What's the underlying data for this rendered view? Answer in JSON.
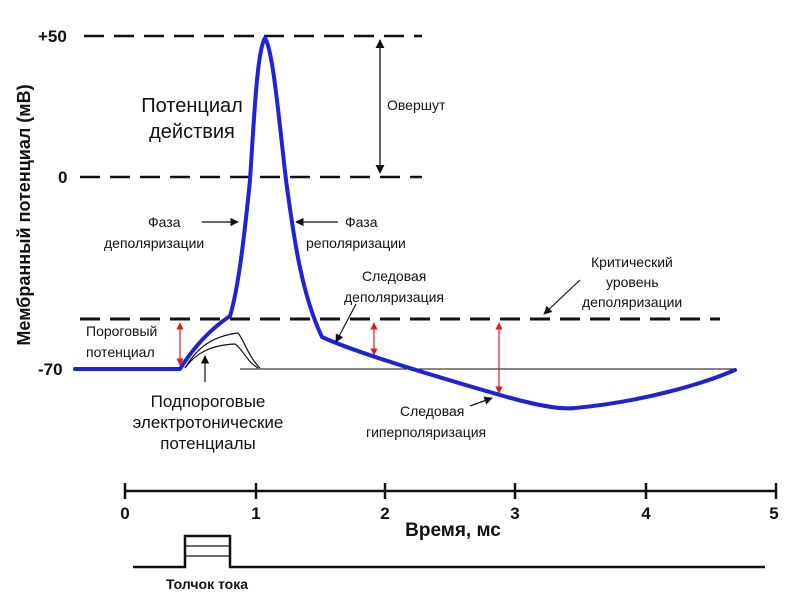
{
  "axis": {
    "y_label": "Мембранный потенциал (мВ)",
    "y_ticks": [
      "+50",
      "0",
      "-70"
    ],
    "x_label": "Время, мс",
    "x_ticks": [
      "0",
      "1",
      "2",
      "3",
      "4",
      "5"
    ]
  },
  "labels": {
    "action_potential": [
      "Потенциал",
      "действия"
    ],
    "overshoot": "Овершут",
    "depol_phase": [
      "Фаза",
      "деполяризации"
    ],
    "repol_phase": [
      "Фаза",
      "реполяризации"
    ],
    "trace_depol": [
      "Следовая",
      "деполяризация"
    ],
    "critical_level": [
      "Критический",
      "уровень",
      "деполяризации"
    ],
    "threshold": [
      "Пороговый",
      "потенциал"
    ],
    "subthreshold": [
      "Подпороговые",
      "электротонические",
      "потенциалы"
    ],
    "trace_hyperpol": [
      "Следовая",
      "гиперполяризация"
    ],
    "stimulus": "Толчок тока"
  },
  "colors": {
    "action_potential_curve": "#2121d6",
    "marker": "#d62020",
    "line": "#111111"
  }
}
